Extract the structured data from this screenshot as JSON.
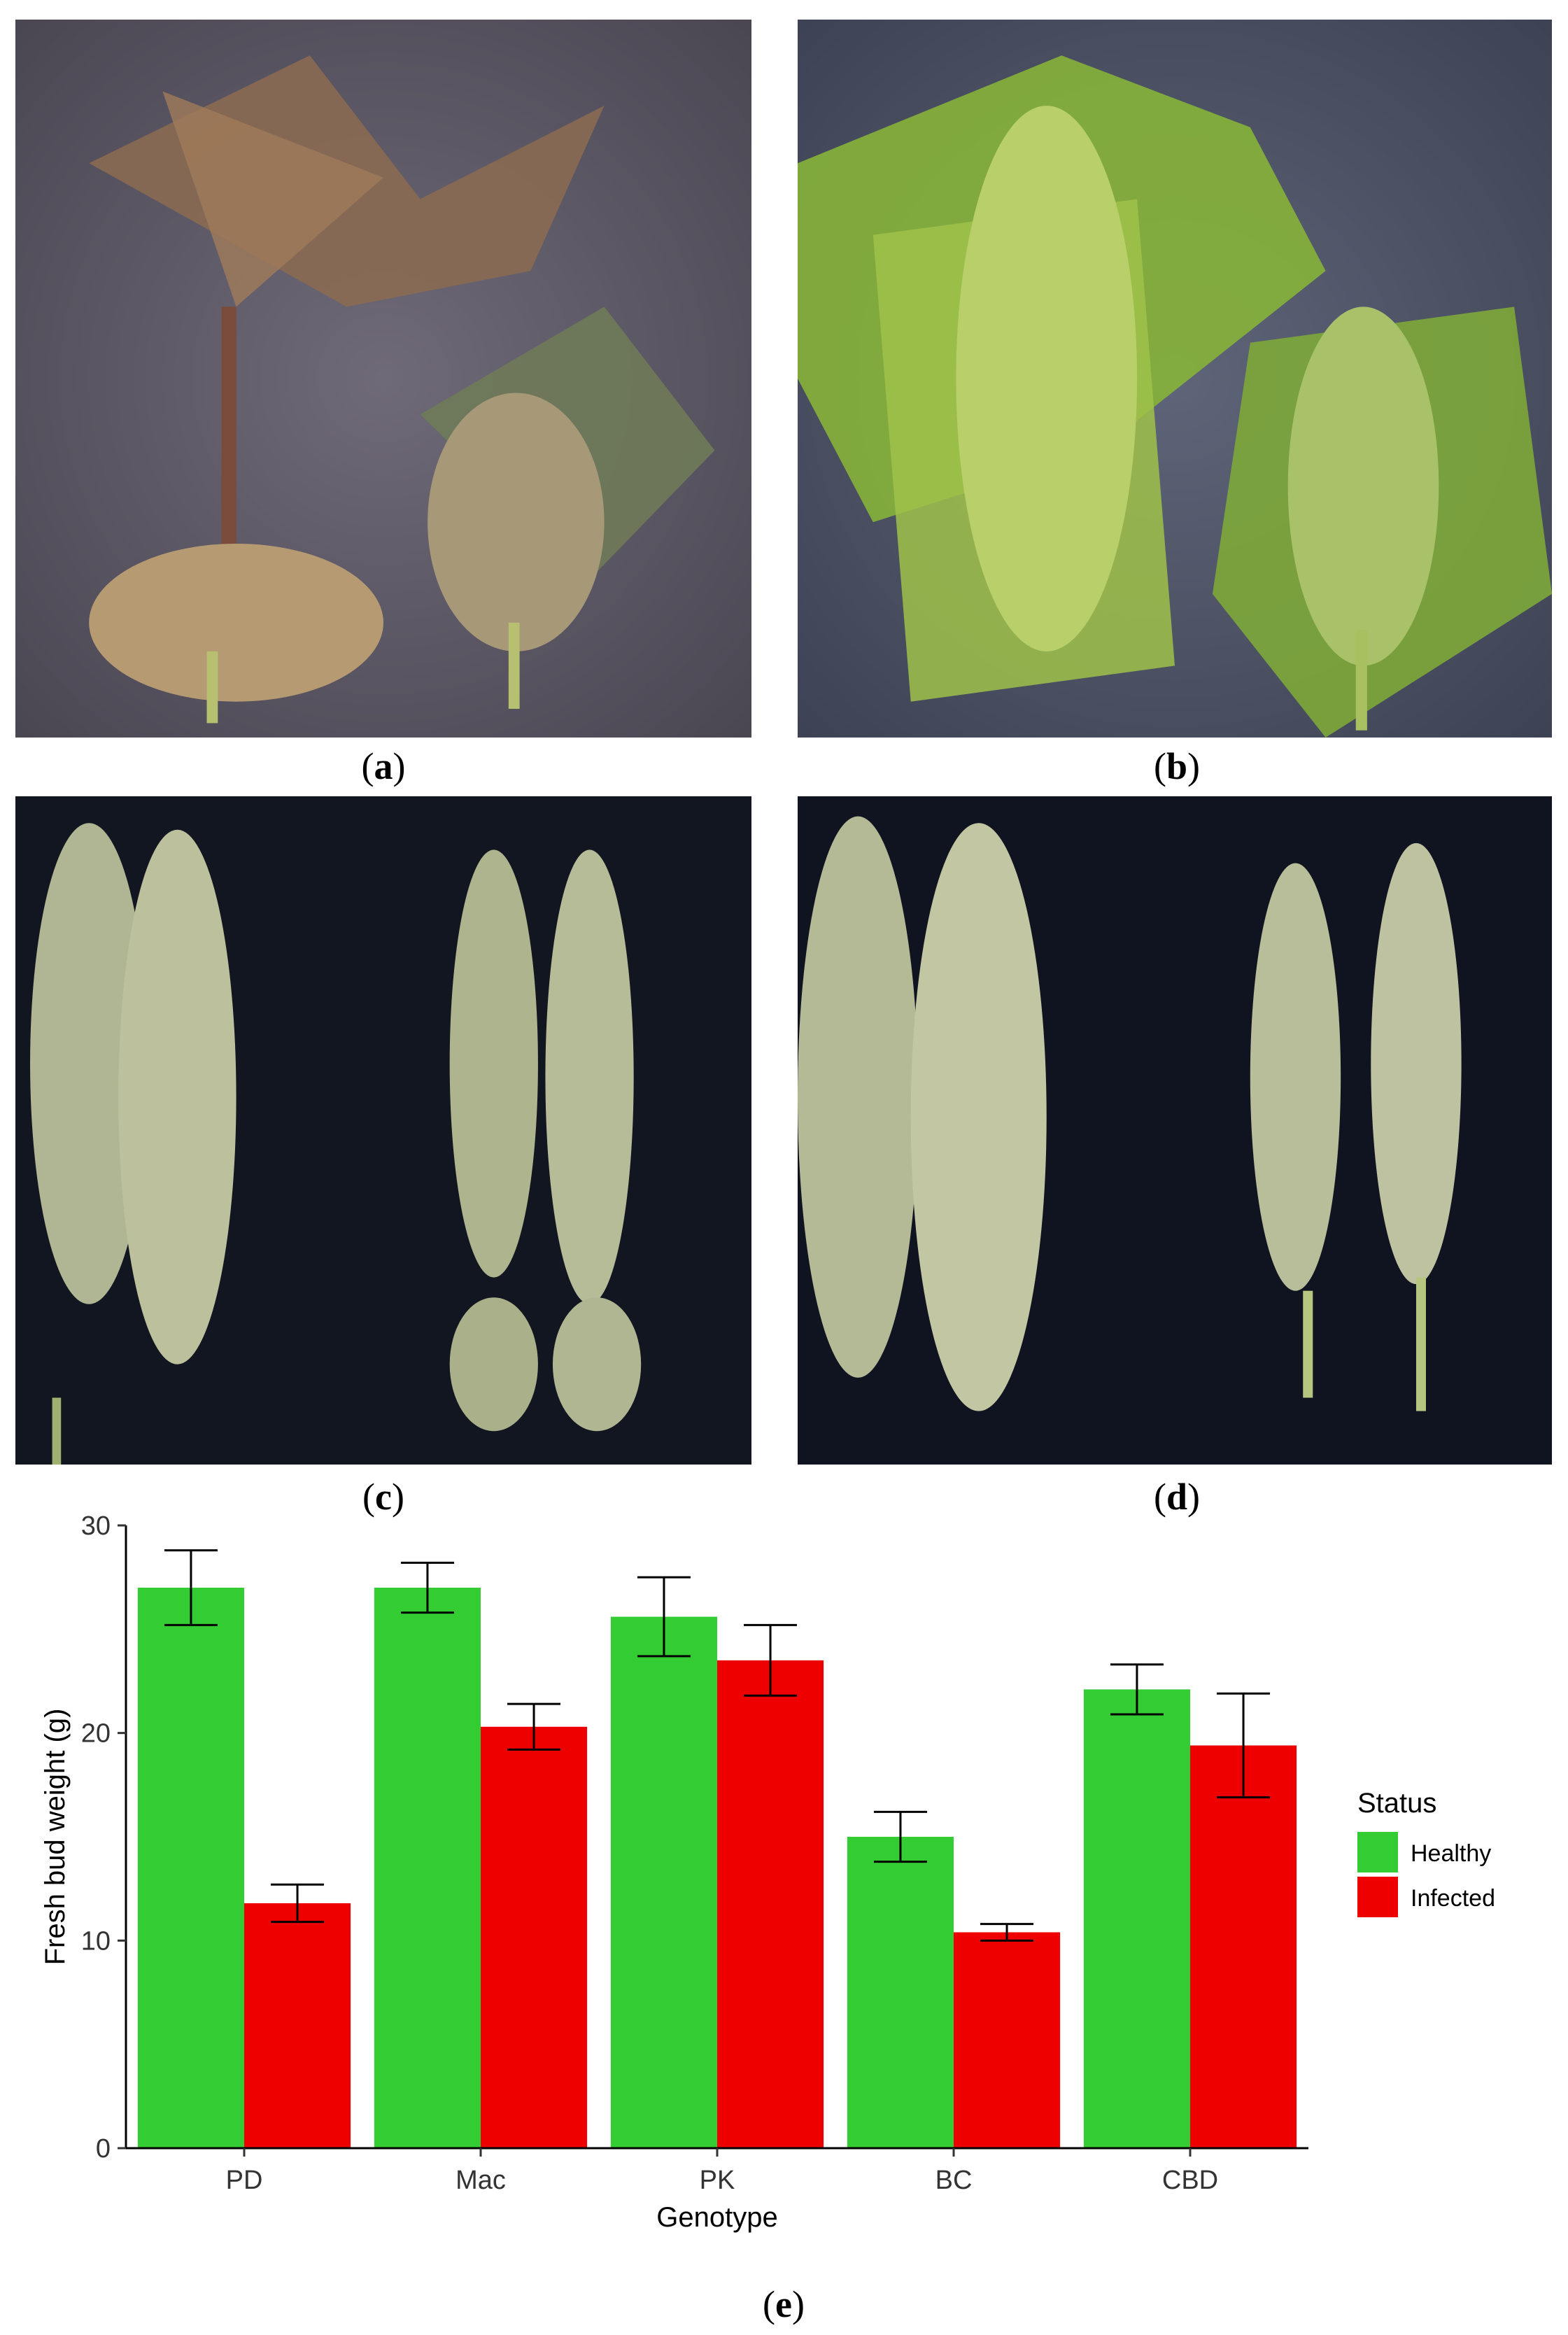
{
  "panels": [
    {
      "id": "a",
      "label": "a"
    },
    {
      "id": "b",
      "label": "b"
    },
    {
      "id": "c",
      "label": "c"
    },
    {
      "id": "d",
      "label": "d"
    }
  ],
  "chart_caption": "e",
  "colors": {
    "healthy": "#33cc33",
    "infected": "#ee0000"
  },
  "chart_data": {
    "type": "bar",
    "xlabel": "Genotype",
    "ylabel": "Fresh bud weight (g)",
    "ylim": [
      0,
      30
    ],
    "yticks": [
      0,
      10,
      20,
      30
    ],
    "categories": [
      "PD",
      "Mac",
      "PK",
      "BC",
      "CBD"
    ],
    "legend": {
      "title": "Status",
      "placement": "right"
    },
    "series": [
      {
        "name": "Healthy",
        "values": [
          27.0,
          27.0,
          25.6,
          15.0,
          22.1
        ],
        "errors": [
          1.8,
          1.2,
          1.9,
          1.2,
          1.2
        ]
      },
      {
        "name": "Infected",
        "values": [
          11.8,
          20.3,
          23.5,
          10.4,
          19.4
        ],
        "errors": [
          0.9,
          1.1,
          1.7,
          0.4,
          2.5
        ]
      }
    ]
  }
}
